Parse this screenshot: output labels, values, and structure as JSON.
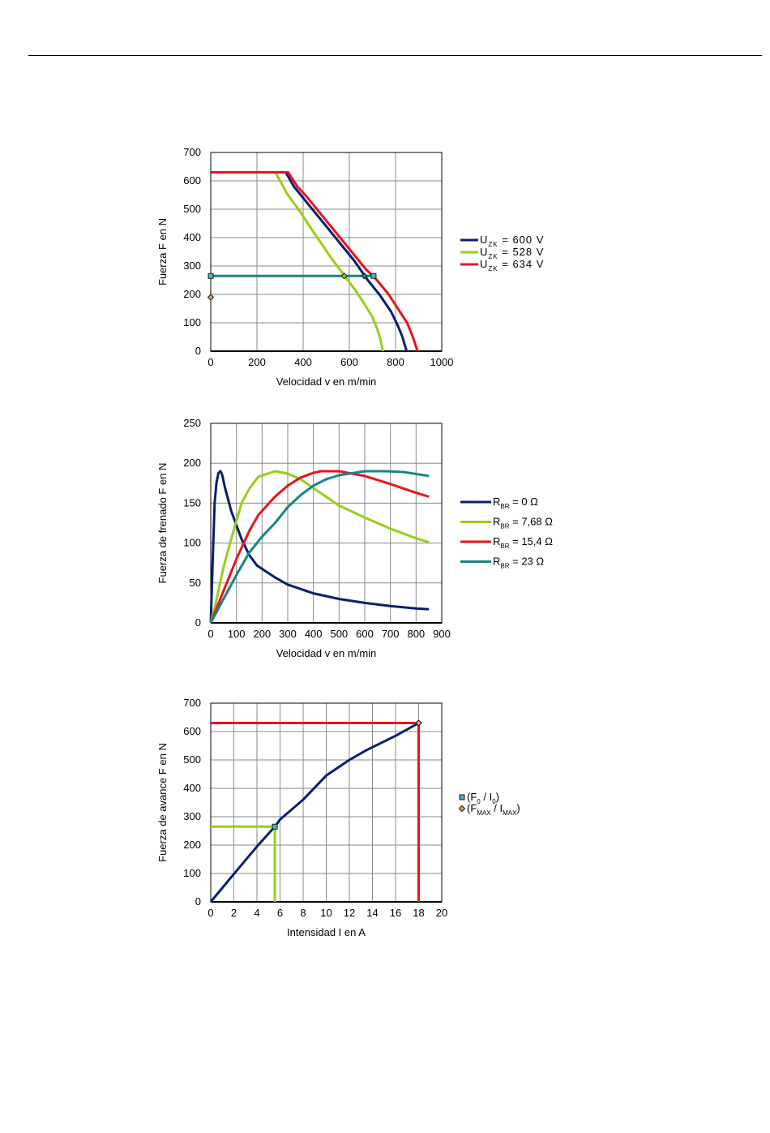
{
  "chart_data": [
    {
      "type": "line",
      "xlabel": "Velocidad v en m/min",
      "ylabel": "Fuerza F en N",
      "xlim": [
        0,
        1000
      ],
      "ylim": [
        0,
        700
      ],
      "xticks": [
        0,
        200,
        400,
        600,
        800,
        1000
      ],
      "yticks": [
        0,
        100,
        200,
        300,
        400,
        500,
        600,
        700
      ],
      "grid": true,
      "legend_position": "right",
      "series": [
        {
          "name": "U",
          "sub": "ZK",
          "suffix": " = 600 V",
          "color": "#0a1f6e",
          "points": [
            [
              0,
              630
            ],
            [
              325,
              630
            ],
            [
              360,
              580
            ],
            [
              400,
              540
            ],
            [
              440,
              500
            ],
            [
              500,
              440
            ],
            [
              560,
              380
            ],
            [
              620,
              320
            ],
            [
              680,
              250
            ],
            [
              730,
              200
            ],
            [
              780,
              140
            ],
            [
              810,
              90
            ],
            [
              830,
              50
            ],
            [
              848,
              0
            ]
          ]
        },
        {
          "name": "U",
          "sub": "ZK",
          "suffix": " = 528 V",
          "color": "#9acd1a",
          "points": [
            [
              0,
              630
            ],
            [
              280,
              630
            ],
            [
              300,
              600
            ],
            [
              330,
              555
            ],
            [
              380,
              500
            ],
            [
              420,
              450
            ],
            [
              470,
              390
            ],
            [
              520,
              330
            ],
            [
              580,
              265
            ],
            [
              630,
              210
            ],
            [
              670,
              160
            ],
            [
              700,
              120
            ],
            [
              720,
              80
            ],
            [
              735,
              40
            ],
            [
              745,
              0
            ]
          ]
        },
        {
          "name": "U",
          "sub": "ZK",
          "suffix": " = 634 V",
          "color": "#e8141e",
          "points": [
            [
              0,
              630
            ],
            [
              335,
              630
            ],
            [
              375,
              580
            ],
            [
              420,
              540
            ],
            [
              470,
              490
            ],
            [
              540,
              420
            ],
            [
              610,
              350
            ],
            [
              670,
              290
            ],
            [
              720,
              250
            ],
            [
              770,
              200
            ],
            [
              810,
              150
            ],
            [
              850,
              100
            ],
            [
              875,
              50
            ],
            [
              895,
              0
            ]
          ]
        },
        {
          "name": "",
          "color": "#168686",
          "points": [
            [
              0,
              265
            ],
            [
              705,
              265
            ]
          ]
        }
      ],
      "markers": [
        {
          "x": 0,
          "y": 265,
          "shape": "square",
          "fill": "#3fb8c8"
        },
        {
          "x": 705,
          "y": 265,
          "shape": "square",
          "fill": "#3fb8c8"
        },
        {
          "x": 0,
          "y": 190,
          "shape": "diamond",
          "fill": "#d9a25a"
        },
        {
          "x": 578,
          "y": 265,
          "shape": "diamond",
          "fill": "#9acd1a"
        },
        {
          "x": 665,
          "y": 265,
          "shape": "diamond",
          "fill": "#168686"
        }
      ]
    },
    {
      "type": "line",
      "xlabel": "Velocidad v en m/min",
      "ylabel": "Fuerza de frenado F en N",
      "xlim": [
        0,
        900
      ],
      "ylim": [
        0,
        250
      ],
      "xticks": [
        0,
        100,
        200,
        300,
        400,
        500,
        600,
        700,
        800,
        900
      ],
      "yticks": [
        0,
        50,
        100,
        150,
        200,
        250
      ],
      "grid": true,
      "legend_position": "right",
      "series": [
        {
          "name": "R",
          "sub": "BR",
          "suffix": " = 0 Ω",
          "color": "#0a1f6e",
          "points": [
            [
              0,
              0
            ],
            [
              8,
              80
            ],
            [
              15,
              150
            ],
            [
              22,
              175
            ],
            [
              30,
              188
            ],
            [
              38,
              190
            ],
            [
              45,
              185
            ],
            [
              55,
              170
            ],
            [
              80,
              140
            ],
            [
              120,
              105
            ],
            [
              150,
              85
            ],
            [
              180,
              72
            ],
            [
              250,
              57
            ],
            [
              300,
              48
            ],
            [
              400,
              37
            ],
            [
              500,
              30
            ],
            [
              600,
              25
            ],
            [
              700,
              21
            ],
            [
              800,
              18
            ],
            [
              850,
              17
            ]
          ]
        },
        {
          "name": "R",
          "sub": "BR",
          "suffix": " = 7,68 Ω",
          "color": "#9acd1a",
          "points": [
            [
              0,
              0
            ],
            [
              20,
              25
            ],
            [
              50,
              70
            ],
            [
              80,
              105
            ],
            [
              120,
              150
            ],
            [
              150,
              168
            ],
            [
              185,
              183
            ],
            [
              250,
              190
            ],
            [
              300,
              187
            ],
            [
              350,
              180
            ],
            [
              400,
              169
            ],
            [
              500,
              147
            ],
            [
              600,
              132
            ],
            [
              700,
              118
            ],
            [
              800,
              106
            ],
            [
              850,
              101
            ]
          ]
        },
        {
          "name": "R",
          "sub": "BR",
          "suffix": " = 15,4 Ω",
          "color": "#e8141e",
          "points": [
            [
              0,
              0
            ],
            [
              50,
              40
            ],
            [
              100,
              80
            ],
            [
              150,
              115
            ],
            [
              185,
              135
            ],
            [
              250,
              158
            ],
            [
              300,
              172
            ],
            [
              350,
              182
            ],
            [
              400,
              188
            ],
            [
              430,
              190
            ],
            [
              500,
              190
            ],
            [
              550,
              187
            ],
            [
              600,
              184
            ],
            [
              700,
              174
            ],
            [
              800,
              163
            ],
            [
              850,
              158
            ]
          ]
        },
        {
          "name": "R",
          "sub": "BR",
          "suffix": " = 23 Ω",
          "color": "#168686",
          "points": [
            [
              0,
              0
            ],
            [
              50,
              30
            ],
            [
              100,
              60
            ],
            [
              150,
              88
            ],
            [
              200,
              108
            ],
            [
              250,
              125
            ],
            [
              300,
              145
            ],
            [
              350,
              160
            ],
            [
              400,
              172
            ],
            [
              450,
              180
            ],
            [
              500,
              185
            ],
            [
              600,
              190
            ],
            [
              680,
              190
            ],
            [
              750,
              189
            ],
            [
              850,
              184
            ]
          ]
        }
      ]
    },
    {
      "type": "line",
      "xlabel": "Intensidad I en A",
      "ylabel": "Fuerza de avance F en N",
      "xlim": [
        0,
        20
      ],
      "ylim": [
        0,
        700
      ],
      "xticks": [
        0,
        2,
        4,
        6,
        8,
        10,
        12,
        14,
        16,
        18,
        20
      ],
      "yticks": [
        0,
        100,
        200,
        300,
        400,
        500,
        600,
        700
      ],
      "grid": true,
      "legend_position": "right",
      "series": [
        {
          "name": "",
          "color": "#0a1f6e",
          "points": [
            [
              0,
              0
            ],
            [
              2,
              98
            ],
            [
              4,
              195
            ],
            [
              5.55,
              265
            ],
            [
              6,
              290
            ],
            [
              8,
              360
            ],
            [
              10,
              445
            ],
            [
              12,
              500
            ],
            [
              13.5,
              535
            ],
            [
              16,
              585
            ],
            [
              18,
              630
            ]
          ]
        },
        {
          "name": "",
          "color": "#9acd1a",
          "points": [
            [
              0,
              265
            ],
            [
              5.55,
              265
            ],
            [
              5.55,
              0
            ]
          ]
        },
        {
          "name": "",
          "color": "#e8141e",
          "points": [
            [
              0,
              630
            ],
            [
              18,
              630
            ],
            [
              18,
              0
            ]
          ]
        }
      ],
      "markers": [
        {
          "x": 5.55,
          "y": 265,
          "shape": "square",
          "fill": "#3fb8c8"
        },
        {
          "x": 18,
          "y": 630,
          "shape": "diamond",
          "fill": "#d9a25a"
        }
      ],
      "legend_items": [
        {
          "shape": "square",
          "fill": "#3fb8c8",
          "t1": "(F",
          "s1": "0",
          "t2": " / I",
          "s2": "0",
          "t3": ")"
        },
        {
          "shape": "diamond",
          "fill": "#d9a25a",
          "t1": "(F",
          "s1": "MAX",
          "t2": " / I",
          "s2": "MAX",
          "t3": ")"
        }
      ]
    }
  ]
}
